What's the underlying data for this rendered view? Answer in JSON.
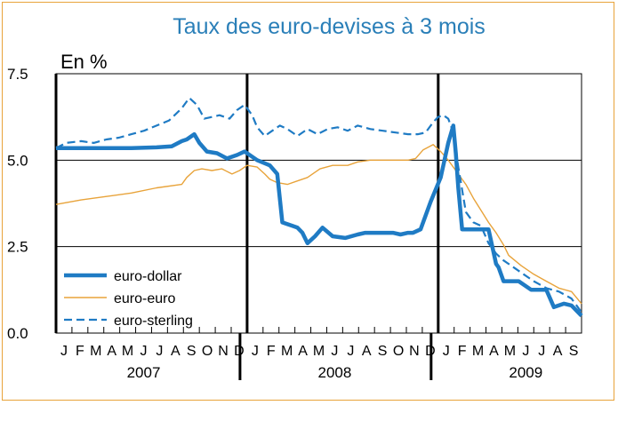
{
  "chart_data": {
    "type": "line",
    "title": "Taux des euro-devises à 3 mois",
    "unit_label": "En %",
    "ylim": [
      0,
      7.5
    ],
    "yticks": [
      "0.0",
      "2.5",
      "5.0",
      "7.5"
    ],
    "xlim": [
      0,
      20.9
    ],
    "grid": "horizontal",
    "legend_position": "bottom-left",
    "months": [
      "J",
      "F",
      "M",
      "A",
      "M",
      "J",
      "J",
      "A",
      "S",
      "O",
      "N",
      "D",
      "J",
      "F",
      "M",
      "A",
      "M",
      "J",
      "J",
      "A",
      "S",
      "O",
      "N",
      "D",
      "J",
      "F",
      "M",
      "A",
      "M",
      "J",
      "J",
      "A",
      "S"
    ],
    "years": [
      "2007",
      "2008",
      "2009"
    ],
    "series": [
      {
        "name": "euro-dollar",
        "color": "#1F7BC4",
        "style": "thick",
        "x": [
          0,
          1,
          2,
          3,
          4,
          4.6,
          5,
          5.2,
          5.5,
          5.7,
          6,
          6.4,
          6.8,
          7.2,
          7.5,
          8,
          8.5,
          8.8,
          9,
          9.4,
          9.6,
          9.8,
          10,
          10.3,
          10.6,
          11,
          11.5,
          12,
          12.3,
          12.6,
          13,
          13.4,
          13.7,
          14,
          14.2,
          14.5,
          14.9,
          15.3,
          15.6,
          15.8,
          15.9,
          16,
          16.15,
          16.3,
          16.5,
          16.8,
          17.2,
          17.5,
          17.6,
          17.8,
          18,
          18.4,
          18.9,
          19.2,
          19.5,
          19.8,
          20.2,
          20.5,
          20.9
        ],
        "y": [
          5.35,
          5.35,
          5.35,
          5.35,
          5.37,
          5.4,
          5.55,
          5.6,
          5.75,
          5.5,
          5.25,
          5.2,
          5.05,
          5.15,
          5.25,
          5.0,
          4.85,
          4.6,
          3.2,
          3.1,
          3.05,
          2.9,
          2.6,
          2.8,
          3.05,
          2.8,
          2.75,
          2.85,
          2.9,
          2.9,
          2.9,
          2.9,
          2.85,
          2.9,
          2.9,
          3.0,
          3.8,
          4.5,
          5.5,
          6.0,
          5.2,
          4.2,
          3.0,
          3.0,
          3.0,
          3.0,
          3.0,
          2.0,
          1.9,
          1.5,
          1.5,
          1.5,
          1.25,
          1.25,
          1.25,
          0.75,
          0.85,
          0.8,
          0.5
        ]
      },
      {
        "name": "euro-euro",
        "color": "#E8A33A",
        "style": "thin",
        "x": [
          0,
          1,
          2,
          3,
          4,
          5,
          5.2,
          5.5,
          5.8,
          6.2,
          6.6,
          7,
          7.3,
          7.6,
          8,
          8.3,
          8.5,
          8.8,
          9.2,
          9.6,
          10,
          10.5,
          11,
          11.6,
          12,
          12.5,
          13,
          13.5,
          14,
          14.3,
          14.6,
          15,
          15.3,
          15.6,
          16,
          16.3,
          16.6,
          16.9,
          17.2,
          17.5,
          17.8,
          18,
          18.5,
          19,
          19.5,
          20,
          20.5,
          20.9
        ],
        "y": [
          3.72,
          3.85,
          3.95,
          4.05,
          4.2,
          4.3,
          4.5,
          4.7,
          4.75,
          4.7,
          4.75,
          4.6,
          4.7,
          4.85,
          4.8,
          4.6,
          4.45,
          4.35,
          4.3,
          4.4,
          4.5,
          4.75,
          4.85,
          4.85,
          4.95,
          5.0,
          5.0,
          5.0,
          5.0,
          5.05,
          5.3,
          5.45,
          5.25,
          5.0,
          4.6,
          4.3,
          3.9,
          3.55,
          3.2,
          2.9,
          2.55,
          2.25,
          1.95,
          1.7,
          1.5,
          1.3,
          1.2,
          0.85
        ]
      },
      {
        "name": "euro-sterling",
        "color": "#1F7BC4",
        "style": "dashed",
        "x": [
          0,
          0.4,
          1,
          1.5,
          2,
          2.5,
          3,
          3.5,
          4,
          4.5,
          5,
          5.3,
          5.6,
          5.9,
          6.2,
          6.5,
          6.9,
          7.2,
          7.5,
          7.8,
          8,
          8.3,
          8.6,
          8.9,
          9.2,
          9.6,
          10,
          10.4,
          10.8,
          11.2,
          11.6,
          12,
          12.5,
          13,
          13.5,
          14,
          14.4,
          14.7,
          15,
          15.2,
          15.4,
          15.6,
          15.8,
          16,
          16.3,
          16.6,
          16.9,
          17.2,
          17.5,
          17.8,
          18,
          18.5,
          19,
          19.5,
          20,
          20.5,
          20.9
        ],
        "y": [
          5.35,
          5.5,
          5.55,
          5.5,
          5.6,
          5.65,
          5.75,
          5.85,
          6.0,
          6.15,
          6.5,
          6.8,
          6.6,
          6.2,
          6.25,
          6.3,
          6.2,
          6.45,
          6.6,
          6.3,
          5.95,
          5.7,
          5.85,
          6.0,
          5.9,
          5.7,
          5.9,
          5.75,
          5.9,
          5.95,
          5.85,
          6.0,
          5.9,
          5.85,
          5.8,
          5.75,
          5.75,
          5.8,
          6.1,
          6.25,
          6.3,
          6.2,
          5.8,
          4.8,
          3.5,
          3.2,
          3.1,
          2.6,
          2.3,
          2.1,
          2.0,
          1.75,
          1.5,
          1.3,
          1.2,
          1.0,
          0.6
        ]
      }
    ]
  }
}
